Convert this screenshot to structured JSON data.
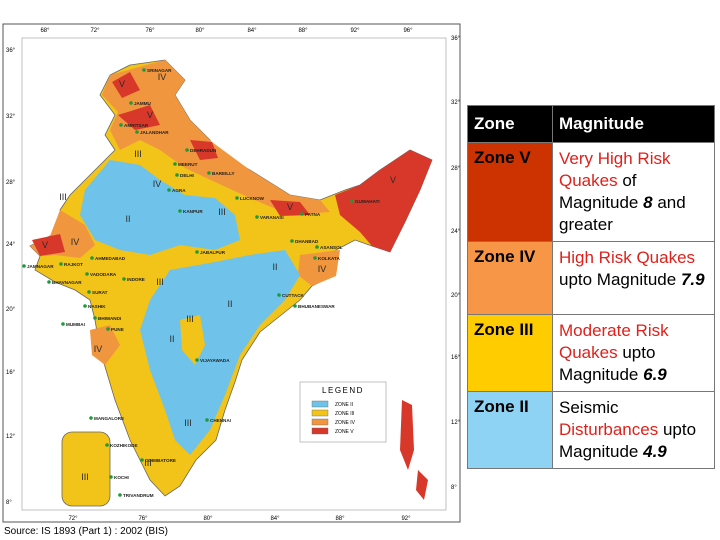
{
  "map": {
    "longitudes_top": [
      "68°",
      "72°",
      "76°",
      "80°",
      "84°",
      "88°",
      "92°",
      "96°"
    ],
    "longitudes_bottom": [
      "72°",
      "76°",
      "80°",
      "84°",
      "88°",
      "92°"
    ],
    "latitudes_left": [
      "36°",
      "32°",
      "28°",
      "24°",
      "20°",
      "16°",
      "12°",
      "8°"
    ],
    "latitudes_right": [
      "36°",
      "32°",
      "28°",
      "24°",
      "20°",
      "16°",
      "12°",
      "8°"
    ],
    "cities": [
      "SRINAGAR",
      "JAMMU",
      "AMRITSAR",
      "JALANDHAR",
      "DEHRADUN",
      "MEERUT",
      "DELHI",
      "BAREILLY",
      "AGRA",
      "LUCKNOW",
      "KANPUR",
      "VARANASI",
      "PATNA",
      "GUWAHATI",
      "DHANBAD",
      "ASANSOL",
      "KOLKATA",
      "JABALPUR",
      "AHMEDABAD",
      "JAMNAGAR",
      "RAJKOT",
      "VADODARA",
      "BHAVNAGAR",
      "INDORE",
      "SURAT",
      "NASHIK",
      "BHIWANDI",
      "MUMBAI",
      "PUNE",
      "CUTTACK",
      "BHUBANESWAR",
      "VIJAYAWADA",
      "MANGALORE",
      "CHENNAI",
      "KOZHIKODE",
      "COIMBATORE",
      "KOCHI",
      "TRIVANDRUM"
    ],
    "zone_labels": [
      "IV",
      "V",
      "V",
      "III",
      "IV",
      "V",
      "V",
      "III",
      "II",
      "III",
      "V",
      "IV",
      "II",
      "IV",
      "III",
      "II",
      "III",
      "II",
      "IV",
      "III",
      "III",
      "III"
    ],
    "legend": {
      "title": "LEGEND",
      "items": [
        "ZONE II",
        "ZONE III",
        "ZONE IV",
        "ZONE V"
      ]
    },
    "source": "Source: IS 1893 (Part 1) : 2002 (BIS)"
  },
  "table": {
    "header": [
      "Zone",
      "Magnitude"
    ],
    "rows": [
      {
        "zone": "Zone V",
        "risk": "Very High Risk Quakes",
        "text": "of Magnitude",
        "magnitude": 8,
        "tail": "and greater"
      },
      {
        "zone": "Zone IV",
        "risk": "High Risk Quakes",
        "text": "upto Magnitude",
        "magnitude": 7.9
      },
      {
        "zone": "Zone III",
        "risk": "Moderate Risk Quakes",
        "text": "upto Magnitude",
        "magnitude": 6.9
      },
      {
        "zone": "Zone II",
        "lead": "Seismic",
        "risk": "Disturbances",
        "text": "upto Magnitude",
        "magnitude": 4.9
      }
    ]
  }
}
